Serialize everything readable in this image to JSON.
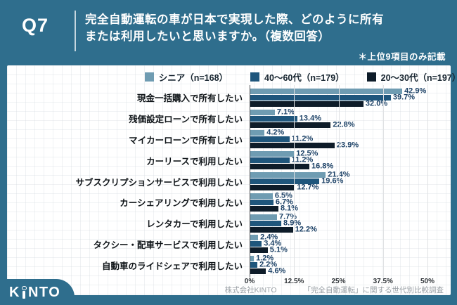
{
  "header": {
    "q_label": "Q7",
    "title_line1": "完全自動運転の車が日本で実現した際、どのように所有",
    "title_line2": "または利用したいと思いますか。（複数回答）",
    "note": "＊上位9項目のみ記載"
  },
  "chart_data": {
    "type": "bar",
    "orientation": "horizontal",
    "title": "完全自動運転の車が日本で実現した際、どのように所有または利用したいと思いますか。（複数回答）",
    "categories": [
      "現金一括購入で所有したい",
      "残価設定ローンで所有したい",
      "マイカーローンで所有したい",
      "カーリースで利用したい",
      "サブスクリプションサービスで利用したい",
      "カーシェアリングで利用したい",
      "レンタカーで利用したい",
      "タクシー・配車サービスで利用したい",
      "自動車のライドシェアで利用したい"
    ],
    "series": [
      {
        "name": "シニア（n=168）",
        "color": "#6f9cb2",
        "values": [
          42.9,
          7.1,
          4.2,
          12.5,
          21.4,
          6.5,
          7.7,
          2.4,
          1.2
        ]
      },
      {
        "name": "40〜60代（n=179）",
        "color": "#1f567c",
        "values": [
          39.7,
          13.4,
          11.2,
          11.2,
          19.6,
          6.7,
          8.9,
          3.4,
          2.2
        ]
      },
      {
        "name": "20〜30代（n=197）",
        "color": "#0e1c29",
        "values": [
          32.0,
          22.8,
          23.9,
          16.8,
          12.7,
          8.1,
          12.2,
          5.1,
          4.6
        ]
      }
    ],
    "x_ticks": [
      "0%",
      "12.5%",
      "25%",
      "37.5%",
      "50%"
    ],
    "xlim": [
      0,
      50
    ],
    "value_suffix": "%",
    "grid": true,
    "legend_position": "top"
  },
  "footer": {
    "company": "株式会社KINTO",
    "survey": "「完全自動運転」に関する世代別比較調査",
    "logo_part1": "K",
    "logo_part2": "NTO",
    "logo_text": "KINTO"
  },
  "colors": {
    "background_teal": "#2f6e8d",
    "value_label": "#1c4166",
    "gridline": "#dfe1e3",
    "zero_axis": "#4d4f52"
  }
}
